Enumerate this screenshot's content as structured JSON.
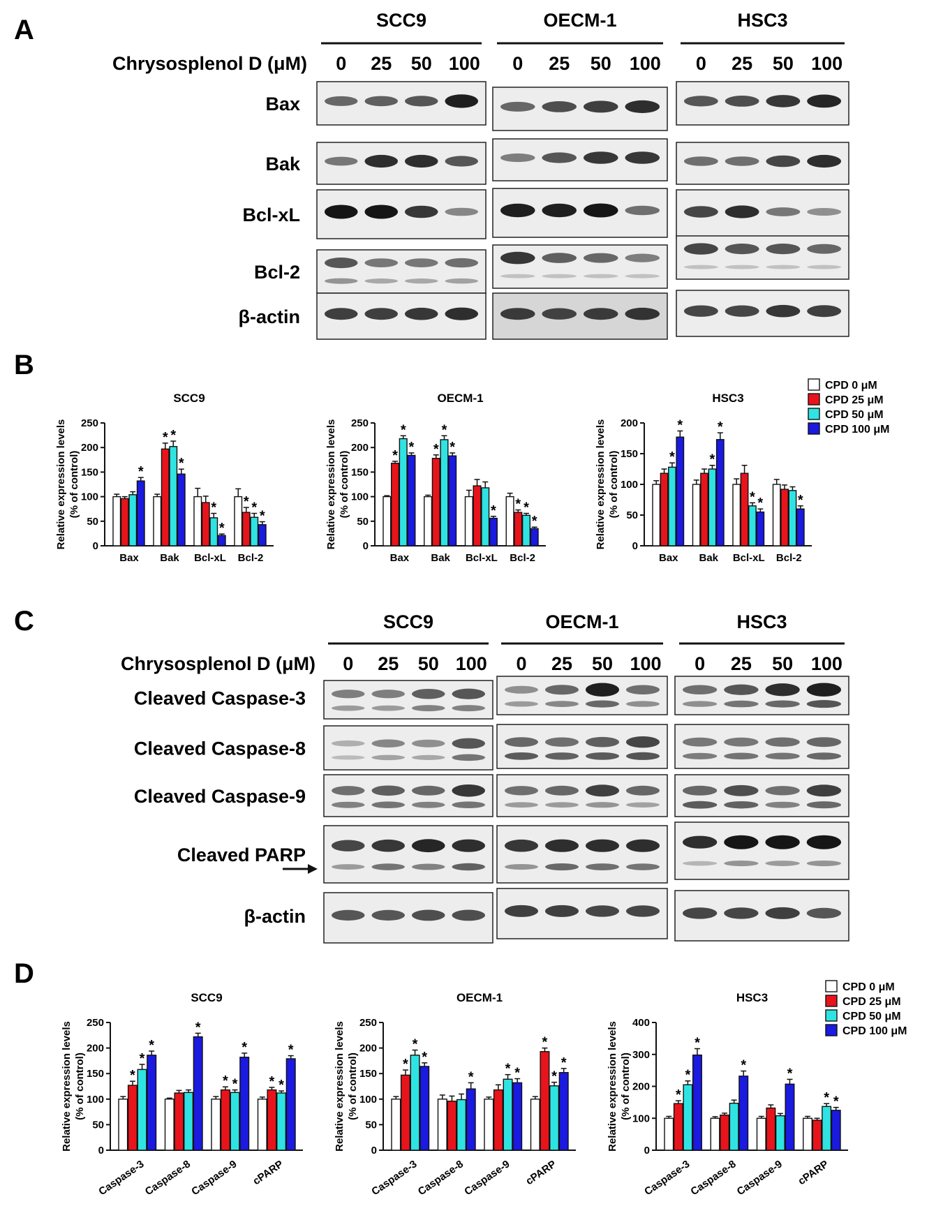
{
  "panel_labels": [
    "A",
    "B",
    "C",
    "D"
  ],
  "blot_A": {
    "cell_lines": [
      "SCC9",
      "OECM-1",
      "HSC3"
    ],
    "treatment_label": "Chrysosplenol D (μM)",
    "doses": [
      "0",
      "25",
      "50",
      "100"
    ],
    "rows": [
      "Bax",
      "Bak",
      "Bcl-xL",
      "Bcl-2",
      "β-actin"
    ]
  },
  "blot_C": {
    "cell_lines": [
      "SCC9",
      "OECM-1",
      "HSC3"
    ],
    "treatment_label": "Chrysosplenol D (μM)",
    "doses": [
      "0",
      "25",
      "50",
      "100"
    ],
    "rows": [
      "Cleaved Caspase-3",
      "Cleaved Caspase-8",
      "Cleaved Caspase-9",
      "Cleaved PARP",
      "β-actin"
    ]
  },
  "legend": [
    "CPD 0 μM",
    "CPD 25 μM",
    "CPD 50 μM",
    "CPD 100 μM"
  ],
  "colors": {
    "dose0": "#ffffff",
    "dose25": "#e8141b",
    "dose50": "#30e3e3",
    "dose100": "#1a1ae0",
    "band": "#161616"
  },
  "y_axis_label": [
    "Relative expression levels",
    "(% of control)"
  ],
  "significance_mark": "*",
  "chart_data": [
    {
      "panel": "B",
      "type": "bar",
      "title": "SCC9",
      "categories": [
        "Bax",
        "Bak",
        "Bcl-xL",
        "Bcl-2"
      ],
      "ylim": [
        0,
        250
      ],
      "yticks": [
        0,
        50,
        100,
        150,
        200,
        250
      ],
      "series": [
        {
          "name": "CPD 0 μM",
          "values": [
            100,
            100,
            100,
            100
          ],
          "errors": [
            5,
            5,
            17,
            16
          ]
        },
        {
          "name": "CPD 25 μM",
          "values": [
            96,
            197,
            88,
            68
          ],
          "errors": [
            4,
            12,
            13,
            10
          ]
        },
        {
          "name": "CPD 50 μM",
          "values": [
            104,
            202,
            57,
            58
          ],
          "errors": [
            6,
            11,
            9,
            8
          ]
        },
        {
          "name": "CPD 100 μM",
          "values": [
            132,
            146,
            21,
            43
          ],
          "errors": [
            7,
            10,
            3,
            6
          ]
        }
      ],
      "significant": [
        [
          false,
          false,
          false,
          false
        ],
        [
          false,
          true,
          false,
          true
        ],
        [
          false,
          true,
          true,
          true
        ],
        [
          true,
          true,
          true,
          true
        ]
      ]
    },
    {
      "panel": "B",
      "type": "bar",
      "title": "OECM-1",
      "categories": [
        "Bax",
        "Bak",
        "Bcl-xL",
        "Bcl-2"
      ],
      "ylim": [
        0,
        250
      ],
      "yticks": [
        0,
        50,
        100,
        150,
        200,
        250
      ],
      "series": [
        {
          "name": "CPD 0 μM",
          "values": [
            100,
            100,
            100,
            100
          ],
          "errors": [
            2,
            3,
            13,
            7
          ]
        },
        {
          "name": "CPD 25 μM",
          "values": [
            168,
            178,
            122,
            68
          ],
          "errors": [
            4,
            7,
            13,
            5
          ]
        },
        {
          "name": "CPD 50 μM",
          "values": [
            218,
            216,
            118,
            62
          ],
          "errors": [
            6,
            8,
            12,
            4
          ]
        },
        {
          "name": "CPD 100 μM",
          "values": [
            184,
            183,
            56,
            35
          ],
          "errors": [
            5,
            6,
            4,
            3
          ]
        }
      ],
      "significant": [
        [
          false,
          false,
          false,
          false
        ],
        [
          true,
          true,
          false,
          true
        ],
        [
          true,
          true,
          false,
          true
        ],
        [
          true,
          true,
          true,
          true
        ]
      ]
    },
    {
      "panel": "B",
      "type": "bar",
      "title": "HSC3",
      "categories": [
        "Bax",
        "Bak",
        "Bcl-xL",
        "Bcl-2"
      ],
      "ylim": [
        0,
        200
      ],
      "yticks": [
        0,
        50,
        100,
        150,
        200
      ],
      "series": [
        {
          "name": "CPD 0 μM",
          "values": [
            100,
            100,
            100,
            100
          ],
          "errors": [
            6,
            7,
            9,
            8
          ]
        },
        {
          "name": "CPD 25 μM",
          "values": [
            118,
            118,
            118,
            92
          ],
          "errors": [
            7,
            7,
            13,
            7
          ]
        },
        {
          "name": "CPD 50 μM",
          "values": [
            128,
            125,
            65,
            90
          ],
          "errors": [
            7,
            6,
            5,
            6
          ]
        },
        {
          "name": "CPD 100 μM",
          "values": [
            177,
            173,
            55,
            60
          ],
          "errors": [
            10,
            11,
            5,
            5
          ]
        }
      ],
      "significant": [
        [
          false,
          false,
          false,
          false
        ],
        [
          false,
          false,
          false,
          false
        ],
        [
          true,
          true,
          true,
          false
        ],
        [
          true,
          true,
          true,
          true
        ]
      ]
    },
    {
      "panel": "D",
      "type": "bar",
      "title": "SCC9",
      "categories": [
        "Caspase-3",
        "Caspase-8",
        "Caspase-9",
        "cPARP"
      ],
      "ylim": [
        0,
        250
      ],
      "yticks": [
        0,
        50,
        100,
        150,
        200,
        250
      ],
      "series": [
        {
          "name": "CPD 0 μM",
          "values": [
            100,
            100,
            100,
            100
          ],
          "errors": [
            5,
            2,
            5,
            4
          ]
        },
        {
          "name": "CPD 25 μM",
          "values": [
            127,
            112,
            118,
            118
          ],
          "errors": [
            8,
            5,
            6,
            5
          ]
        },
        {
          "name": "CPD 50 μM",
          "values": [
            158,
            113,
            113,
            112
          ],
          "errors": [
            10,
            5,
            5,
            4
          ]
        },
        {
          "name": "CPD 100 μM",
          "values": [
            186,
            222,
            182,
            179
          ],
          "errors": [
            8,
            7,
            8,
            6
          ]
        }
      ],
      "significant": [
        [
          false,
          false,
          false,
          false
        ],
        [
          true,
          false,
          true,
          true
        ],
        [
          true,
          false,
          true,
          true
        ],
        [
          true,
          true,
          true,
          true
        ]
      ]
    },
    {
      "panel": "D",
      "type": "bar",
      "title": "OECM-1",
      "categories": [
        "Caspase-3",
        "Caspase-8",
        "Caspase-9",
        "cPARP"
      ],
      "ylim": [
        0,
        250
      ],
      "yticks": [
        0,
        50,
        100,
        150,
        200,
        250
      ],
      "series": [
        {
          "name": "CPD 0 μM",
          "values": [
            100,
            100,
            100,
            100
          ],
          "errors": [
            5,
            8,
            4,
            5
          ]
        },
        {
          "name": "CPD 25 μM",
          "values": [
            147,
            96,
            118,
            193
          ],
          "errors": [
            10,
            10,
            10,
            7
          ]
        },
        {
          "name": "CPD 50 μM",
          "values": [
            186,
            99,
            139,
            126
          ],
          "errors": [
            10,
            11,
            9,
            7
          ]
        },
        {
          "name": "CPD 100 μM",
          "values": [
            164,
            120,
            132,
            152
          ],
          "errors": [
            7,
            12,
            8,
            8
          ]
        }
      ],
      "significant": [
        [
          false,
          false,
          false,
          false
        ],
        [
          true,
          false,
          false,
          true
        ],
        [
          true,
          false,
          true,
          true
        ],
        [
          true,
          true,
          true,
          true
        ]
      ]
    },
    {
      "panel": "D",
      "type": "bar",
      "title": "HSC3",
      "categories": [
        "Caspase-3",
        "Caspase-8",
        "Caspase-9",
        "cPARP"
      ],
      "ylim": [
        0,
        400
      ],
      "yticks": [
        0,
        100,
        200,
        300,
        400
      ],
      "series": [
        {
          "name": "CPD 0 μM",
          "values": [
            100,
            100,
            100,
            100
          ],
          "errors": [
            6,
            5,
            6,
            6
          ]
        },
        {
          "name": "CPD 25 μM",
          "values": [
            146,
            110,
            132,
            94
          ],
          "errors": [
            9,
            6,
            10,
            6
          ]
        },
        {
          "name": "CPD 50 μM",
          "values": [
            205,
            147,
            108,
            137
          ],
          "errors": [
            12,
            10,
            7,
            9
          ]
        },
        {
          "name": "CPD 100 μM",
          "values": [
            298,
            232,
            207,
            125
          ],
          "errors": [
            20,
            16,
            15,
            9
          ]
        }
      ],
      "significant": [
        [
          false,
          false,
          false,
          false
        ],
        [
          true,
          false,
          false,
          false
        ],
        [
          true,
          false,
          false,
          true
        ],
        [
          true,
          true,
          true,
          true
        ]
      ]
    }
  ]
}
